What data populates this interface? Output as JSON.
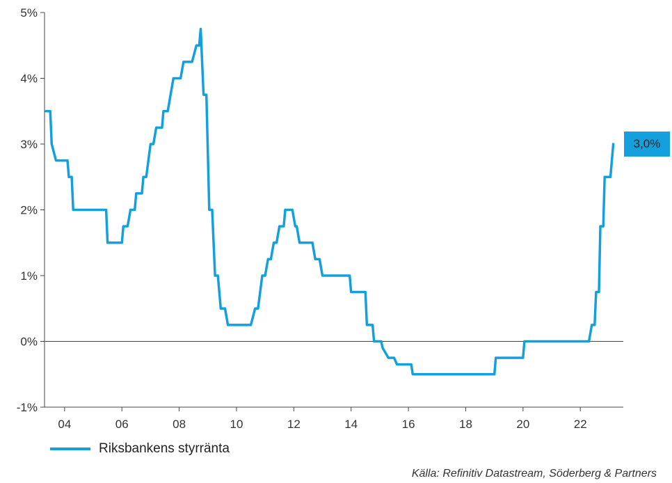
{
  "chart_data": {
    "type": "line",
    "title": "",
    "xlabel": "",
    "ylabel": "",
    "ylim": [
      -1,
      5
    ],
    "xlim": [
      2003.3,
      2023.5
    ],
    "y_ticks": [
      -1,
      0,
      1,
      2,
      3,
      4,
      5
    ],
    "y_tick_labels": [
      "-1%",
      "0%",
      "1%",
      "2%",
      "3%",
      "4%",
      "5%"
    ],
    "x_ticks": [
      2004,
      2006,
      2008,
      2010,
      2012,
      2014,
      2016,
      2018,
      2020,
      2022
    ],
    "x_tick_labels": [
      "04",
      "06",
      "08",
      "10",
      "12",
      "14",
      "16",
      "18",
      "20",
      "22"
    ],
    "grid": false,
    "zero_line": true,
    "legend_position": "bottom-left",
    "series": [
      {
        "name": "Riksbankens styrränta",
        "color": "#13a0dd",
        "points": [
          [
            2003.35,
            3.5
          ],
          [
            2003.5,
            3.5
          ],
          [
            2003.55,
            3.0
          ],
          [
            2003.7,
            2.75
          ],
          [
            2004.1,
            2.75
          ],
          [
            2004.15,
            2.5
          ],
          [
            2004.25,
            2.5
          ],
          [
            2004.3,
            2.0
          ],
          [
            2005.45,
            2.0
          ],
          [
            2005.5,
            1.5
          ],
          [
            2006.0,
            1.5
          ],
          [
            2006.05,
            1.75
          ],
          [
            2006.2,
            1.75
          ],
          [
            2006.3,
            2.0
          ],
          [
            2006.45,
            2.0
          ],
          [
            2006.5,
            2.25
          ],
          [
            2006.7,
            2.25
          ],
          [
            2006.75,
            2.5
          ],
          [
            2006.85,
            2.5
          ],
          [
            2007.0,
            3.0
          ],
          [
            2007.1,
            3.0
          ],
          [
            2007.2,
            3.25
          ],
          [
            2007.4,
            3.25
          ],
          [
            2007.45,
            3.5
          ],
          [
            2007.6,
            3.5
          ],
          [
            2007.8,
            4.0
          ],
          [
            2008.05,
            4.0
          ],
          [
            2008.15,
            4.25
          ],
          [
            2008.45,
            4.25
          ],
          [
            2008.6,
            4.5
          ],
          [
            2008.7,
            4.5
          ],
          [
            2008.75,
            4.75
          ],
          [
            2008.85,
            3.75
          ],
          [
            2008.95,
            3.75
          ],
          [
            2009.05,
            2.0
          ],
          [
            2009.15,
            2.0
          ],
          [
            2009.25,
            1.0
          ],
          [
            2009.35,
            1.0
          ],
          [
            2009.45,
            0.5
          ],
          [
            2009.6,
            0.5
          ],
          [
            2009.7,
            0.25
          ],
          [
            2010.5,
            0.25
          ],
          [
            2010.65,
            0.5
          ],
          [
            2010.75,
            0.5
          ],
          [
            2010.9,
            1.0
          ],
          [
            2011.0,
            1.0
          ],
          [
            2011.1,
            1.25
          ],
          [
            2011.2,
            1.25
          ],
          [
            2011.3,
            1.5
          ],
          [
            2011.4,
            1.5
          ],
          [
            2011.5,
            1.75
          ],
          [
            2011.65,
            1.75
          ],
          [
            2011.7,
            2.0
          ],
          [
            2011.95,
            2.0
          ],
          [
            2012.05,
            1.75
          ],
          [
            2012.1,
            1.75
          ],
          [
            2012.2,
            1.5
          ],
          [
            2012.65,
            1.5
          ],
          [
            2012.75,
            1.25
          ],
          [
            2012.9,
            1.25
          ],
          [
            2013.0,
            1.0
          ],
          [
            2013.95,
            1.0
          ],
          [
            2014.0,
            0.75
          ],
          [
            2014.5,
            0.75
          ],
          [
            2014.55,
            0.25
          ],
          [
            2014.75,
            0.25
          ],
          [
            2014.8,
            0.0
          ],
          [
            2015.05,
            0.0
          ],
          [
            2015.1,
            -0.1
          ],
          [
            2015.3,
            -0.25
          ],
          [
            2015.5,
            -0.25
          ],
          [
            2015.6,
            -0.35
          ],
          [
            2016.1,
            -0.35
          ],
          [
            2016.15,
            -0.5
          ],
          [
            2019.0,
            -0.5
          ],
          [
            2019.05,
            -0.25
          ],
          [
            2020.0,
            -0.25
          ],
          [
            2020.05,
            0.0
          ],
          [
            2022.3,
            0.0
          ],
          [
            2022.4,
            0.25
          ],
          [
            2022.5,
            0.25
          ],
          [
            2022.55,
            0.75
          ],
          [
            2022.65,
            0.75
          ],
          [
            2022.7,
            1.75
          ],
          [
            2022.8,
            1.75
          ],
          [
            2022.85,
            2.5
          ],
          [
            2023.05,
            2.5
          ],
          [
            2023.15,
            3.0
          ]
        ]
      }
    ],
    "annotations": [
      {
        "label": "3,0%",
        "x": 2023.15,
        "y": 3.0,
        "background": "#13a0dd"
      }
    ]
  },
  "legend": {
    "label": "Riksbankens styrränta"
  },
  "source": "Källa: Refinitiv Datastream, Söderberg & Partners"
}
